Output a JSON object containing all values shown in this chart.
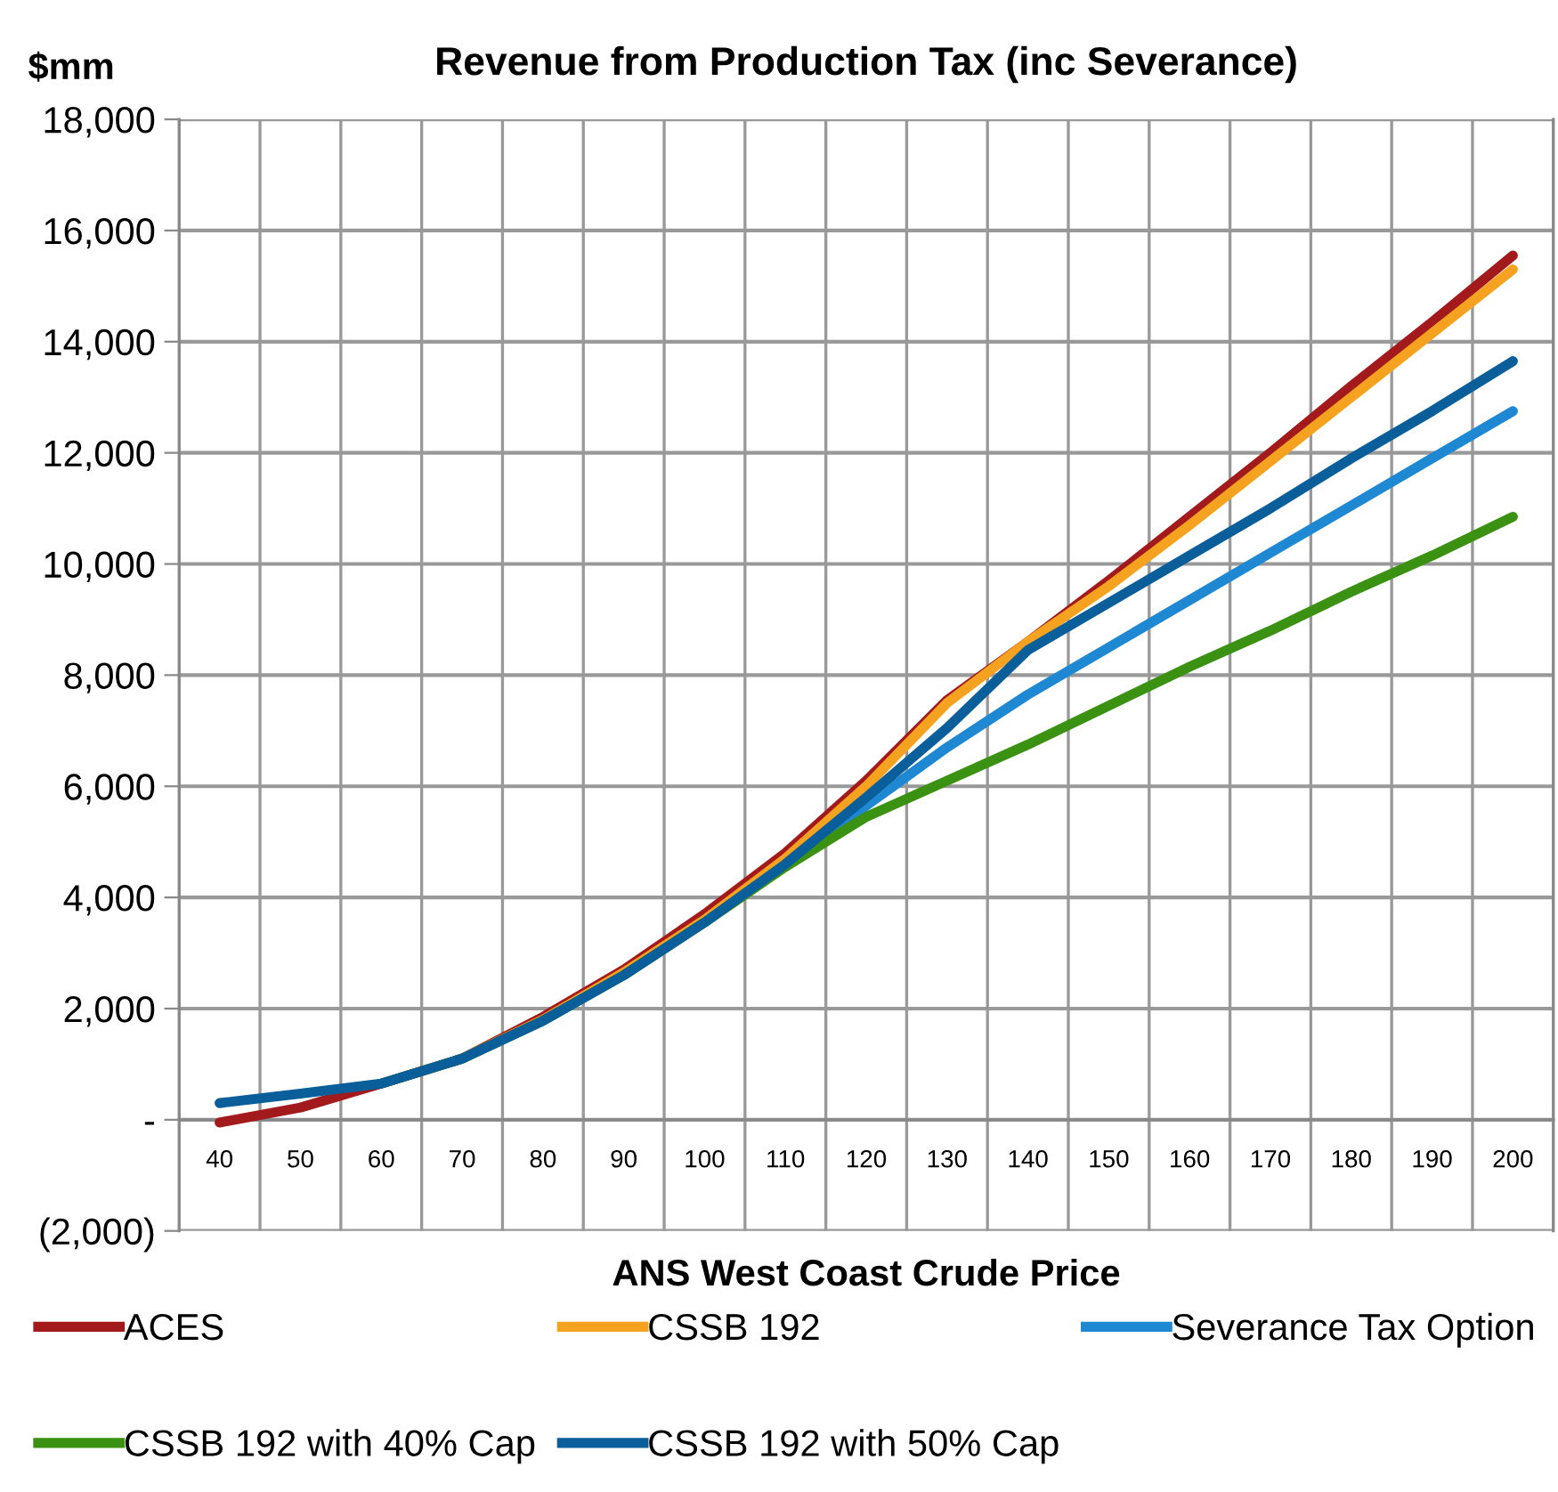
{
  "chart_data": {
    "type": "line",
    "title": "Revenue from Production Tax (inc Severance)",
    "ylabel": "$mm",
    "xlabel": "ANS West Coast Crude Price",
    "categories": [
      "40",
      "50",
      "60",
      "70",
      "80",
      "90",
      "100",
      "110",
      "120",
      "130",
      "140",
      "150",
      "160",
      "170",
      "180",
      "190",
      "200"
    ],
    "series": [
      {
        "name": "ACES",
        "color": "#a31a1c",
        "values": [
          -50,
          220,
          650,
          1100,
          1850,
          2700,
          3700,
          4800,
          6100,
          7550,
          8600,
          9700,
          10850,
          12000,
          13200,
          14350,
          15550
        ]
      },
      {
        "name": "CSSB 192",
        "color": "#f4a21f",
        "values": [
          null,
          null,
          null,
          1100,
          1800,
          2650,
          3600,
          4700,
          6000,
          7500,
          8600,
          9600,
          10700,
          11850,
          13000,
          14150,
          15300
        ]
      },
      {
        "name": "Severance Tax Option",
        "color": "#1f88d2",
        "values": [
          null,
          null,
          null,
          null,
          null,
          null,
          null,
          4550,
          5650,
          6700,
          7650,
          8500,
          9350,
          10200,
          11050,
          11900,
          12750
        ]
      },
      {
        "name": "CSSB 192 with 40% Cap",
        "color": "#3a9112",
        "values": [
          null,
          null,
          650,
          1100,
          1780,
          2600,
          3550,
          4550,
          5450,
          6100,
          6750,
          7450,
          8150,
          8800,
          9500,
          10150,
          10850
        ]
      },
      {
        "name": "CSSB 192 with 50% Cap",
        "color": "#0a5f9a",
        "values": [
          300,
          470,
          650,
          1100,
          1780,
          2600,
          3550,
          4600,
          5800,
          7050,
          8450,
          9300,
          10150,
          11000,
          11900,
          12750,
          13650
        ]
      }
    ],
    "ylim": [
      -2000,
      18000
    ],
    "yticks": [
      {
        "value": -2000,
        "label": "(2,000)"
      },
      {
        "value": 0,
        "label": "-"
      },
      {
        "value": 2000,
        "label": "2,000"
      },
      {
        "value": 4000,
        "label": "4,000"
      },
      {
        "value": 6000,
        "label": "6,000"
      },
      {
        "value": 8000,
        "label": "8,000"
      },
      {
        "value": 10000,
        "label": "10,000"
      },
      {
        "value": 12000,
        "label": "12,000"
      },
      {
        "value": 14000,
        "label": "14,000"
      },
      {
        "value": 16000,
        "label": "16,000"
      },
      {
        "value": 18000,
        "label": "18,000"
      }
    ],
    "grid": true,
    "legend": "bottom",
    "marker": "none",
    "line_style": "solid"
  }
}
